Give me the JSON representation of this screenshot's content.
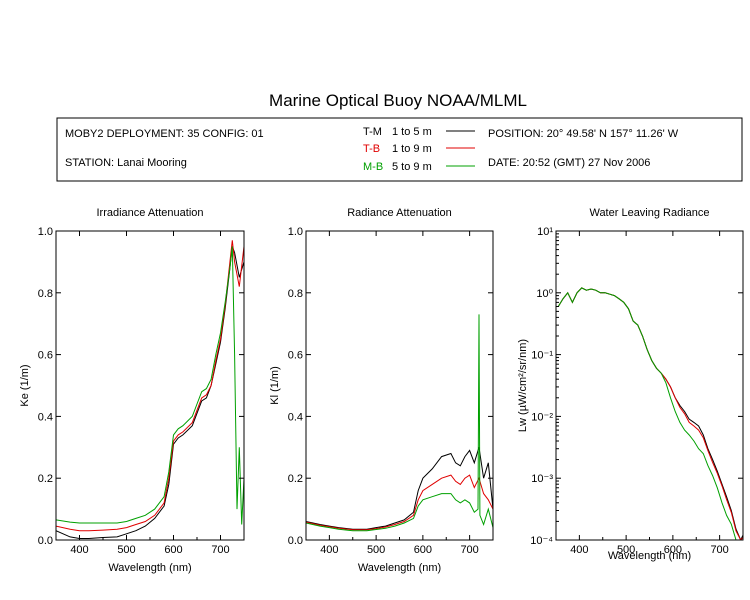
{
  "title": "Marine Optical Buoy NOAA/MLML",
  "info": {
    "deployment": "MOBY2 DEPLOYMENT: 35 CONFIG: 01",
    "station": "STATION: Lanai Mooring",
    "position": "POSITION: 20° 49.58' N   157° 11.26' W",
    "date": "DATE: 20:52 (GMT) 27 Nov 2006",
    "legend": [
      {
        "code": "T-M",
        "range": "1 to 5  m",
        "color": "#000000"
      },
      {
        "code": "T-B",
        "range": "1 to 9  m",
        "color": "#e00000"
      },
      {
        "code": "M-B",
        "range": "5 to 9  m",
        "color": "#00a000"
      }
    ]
  },
  "chart_data": [
    {
      "type": "line",
      "title": "Irradiance Attenuation",
      "xlabel": "Wavelength (nm)",
      "ylabel": "Ke  (1/m)",
      "xlim": [
        350,
        750
      ],
      "ylim": [
        0.0,
        1.0
      ],
      "xticks": [
        "400",
        "500",
        "600",
        "700"
      ],
      "yticks": [
        "0.0",
        "0.2",
        "0.4",
        "0.6",
        "0.8",
        "1.0"
      ],
      "series": [
        {
          "name": "T-M",
          "color": "#000000",
          "x": [
            350,
            380,
            400,
            420,
            450,
            480,
            500,
            520,
            540,
            560,
            580,
            590,
            600,
            610,
            620,
            640,
            650,
            660,
            670,
            680,
            690,
            700,
            710,
            720,
            725,
            730,
            740,
            750
          ],
          "y": [
            0.03,
            0.01,
            0.005,
            0.005,
            0.008,
            0.01,
            0.02,
            0.03,
            0.045,
            0.07,
            0.11,
            0.18,
            0.31,
            0.33,
            0.34,
            0.37,
            0.41,
            0.45,
            0.46,
            0.5,
            0.57,
            0.64,
            0.75,
            0.88,
            0.95,
            0.93,
            0.85,
            0.9
          ]
        },
        {
          "name": "T-B",
          "color": "#e00000",
          "x": [
            350,
            380,
            400,
            420,
            450,
            480,
            500,
            520,
            540,
            560,
            580,
            590,
            600,
            610,
            620,
            640,
            650,
            660,
            670,
            680,
            690,
            700,
            710,
            720,
            725,
            730,
            740,
            750
          ],
          "y": [
            0.045,
            0.035,
            0.03,
            0.03,
            0.032,
            0.035,
            0.04,
            0.05,
            0.06,
            0.08,
            0.12,
            0.2,
            0.32,
            0.34,
            0.35,
            0.38,
            0.42,
            0.46,
            0.47,
            0.5,
            0.58,
            0.65,
            0.76,
            0.9,
            0.97,
            0.9,
            0.82,
            0.95
          ]
        },
        {
          "name": "M-B",
          "color": "#00a000",
          "x": [
            350,
            380,
            400,
            420,
            450,
            480,
            500,
            520,
            540,
            560,
            580,
            590,
            600,
            610,
            620,
            640,
            650,
            660,
            670,
            680,
            690,
            700,
            710,
            720,
            725,
            730,
            735,
            740,
            745,
            750
          ],
          "y": [
            0.065,
            0.058,
            0.055,
            0.055,
            0.055,
            0.055,
            0.06,
            0.07,
            0.08,
            0.1,
            0.14,
            0.22,
            0.34,
            0.36,
            0.37,
            0.4,
            0.44,
            0.48,
            0.49,
            0.52,
            0.6,
            0.67,
            0.77,
            0.88,
            0.95,
            0.6,
            0.1,
            0.3,
            0.05,
            0.2
          ]
        }
      ]
    },
    {
      "type": "line",
      "title": "Radiance Attenuation",
      "xlabel": "Wavelength (nm)",
      "ylabel": "Kl  (1/m)",
      "xlim": [
        350,
        750
      ],
      "ylim": [
        0.0,
        1.0
      ],
      "xticks": [
        "400",
        "500",
        "600",
        "700"
      ],
      "yticks": [
        "0.0",
        "0.2",
        "0.4",
        "0.6",
        "0.8",
        "1.0"
      ],
      "series": [
        {
          "name": "T-M",
          "color": "#000000",
          "x": [
            350,
            380,
            400,
            420,
            450,
            480,
            500,
            520,
            540,
            560,
            580,
            590,
            600,
            620,
            640,
            660,
            670,
            680,
            690,
            700,
            710,
            720,
            730,
            740,
            750
          ],
          "y": [
            0.06,
            0.05,
            0.045,
            0.04,
            0.035,
            0.035,
            0.04,
            0.045,
            0.055,
            0.065,
            0.09,
            0.16,
            0.2,
            0.23,
            0.27,
            0.28,
            0.25,
            0.24,
            0.27,
            0.29,
            0.25,
            0.3,
            0.2,
            0.25,
            0.1
          ]
        },
        {
          "name": "T-B",
          "color": "#e00000",
          "x": [
            350,
            380,
            400,
            420,
            450,
            480,
            500,
            520,
            540,
            560,
            580,
            590,
            600,
            620,
            640,
            660,
            670,
            680,
            690,
            700,
            710,
            720,
            730,
            740,
            750
          ],
          "y": [
            0.058,
            0.048,
            0.043,
            0.038,
            0.033,
            0.033,
            0.037,
            0.042,
            0.05,
            0.06,
            0.08,
            0.13,
            0.16,
            0.18,
            0.2,
            0.21,
            0.19,
            0.18,
            0.2,
            0.21,
            0.17,
            0.2,
            0.15,
            0.13,
            0.1
          ]
        },
        {
          "name": "M-B",
          "color": "#00a000",
          "x": [
            350,
            380,
            400,
            420,
            450,
            480,
            500,
            520,
            540,
            560,
            580,
            590,
            600,
            620,
            640,
            660,
            670,
            680,
            690,
            700,
            710,
            718,
            720,
            722,
            730,
            740,
            750
          ],
          "y": [
            0.055,
            0.045,
            0.04,
            0.035,
            0.03,
            0.03,
            0.034,
            0.038,
            0.045,
            0.055,
            0.07,
            0.11,
            0.13,
            0.14,
            0.15,
            0.15,
            0.13,
            0.12,
            0.13,
            0.12,
            0.09,
            0.1,
            0.73,
            0.08,
            0.05,
            0.1,
            0.04
          ]
        }
      ]
    },
    {
      "type": "line",
      "title": "Water Leaving Radiance",
      "xlabel": "Wavelength (nm)",
      "ylabel": "Lw  (µW/cm²/sr/nm)",
      "xlim": [
        350,
        750
      ],
      "ylim": [
        0.0001,
        10
      ],
      "yscale": "log",
      "xticks": [
        "400",
        "500",
        "600",
        "700"
      ],
      "yticks": [
        "10⁻⁴",
        "10⁻³",
        "10⁻²",
        "10⁻¹",
        "10⁰",
        "10¹"
      ],
      "series": [
        {
          "name": "T-M",
          "color": "#000000",
          "x": [
            355,
            365,
            375,
            385,
            395,
            405,
            415,
            425,
            435,
            445,
            455,
            465,
            475,
            485,
            495,
            505,
            515,
            525,
            535,
            545,
            555,
            565,
            575,
            585,
            595,
            605,
            615,
            625,
            635,
            645,
            655,
            665,
            675,
            685,
            695,
            705,
            715,
            725,
            735,
            745,
            750
          ],
          "y": [
            0.6,
            0.8,
            1.0,
            0.7,
            1.0,
            1.2,
            1.1,
            1.15,
            1.1,
            1.0,
            1.0,
            0.95,
            0.9,
            0.8,
            0.7,
            0.55,
            0.35,
            0.3,
            0.2,
            0.12,
            0.08,
            0.06,
            0.05,
            0.04,
            0.03,
            0.02,
            0.015,
            0.012,
            0.009,
            0.008,
            0.007,
            0.005,
            0.003,
            0.002,
            0.0013,
            0.0008,
            0.0005,
            0.0003,
            0.00015,
            0.0001,
            0.00012
          ]
        },
        {
          "name": "T-B",
          "color": "#e00000",
          "x": [
            355,
            365,
            375,
            385,
            395,
            405,
            415,
            425,
            435,
            445,
            455,
            465,
            475,
            485,
            495,
            505,
            515,
            525,
            535,
            545,
            555,
            565,
            575,
            585,
            595,
            605,
            615,
            625,
            635,
            645,
            655,
            665,
            675,
            685,
            695,
            705,
            715,
            725,
            735,
            745,
            750
          ],
          "y": [
            0.6,
            0.8,
            1.0,
            0.7,
            1.0,
            1.2,
            1.1,
            1.15,
            1.1,
            1.0,
            1.0,
            0.95,
            0.9,
            0.8,
            0.7,
            0.55,
            0.35,
            0.3,
            0.2,
            0.12,
            0.08,
            0.06,
            0.05,
            0.04,
            0.03,
            0.02,
            0.014,
            0.011,
            0.008,
            0.007,
            0.006,
            0.0045,
            0.0028,
            0.0018,
            0.0012,
            0.00075,
            0.00045,
            0.00028,
            0.00014,
            0.0001,
            0.00011
          ]
        },
        {
          "name": "M-B",
          "color": "#00a000",
          "x": [
            355,
            365,
            375,
            385,
            395,
            405,
            415,
            425,
            435,
            445,
            455,
            465,
            475,
            485,
            495,
            505,
            515,
            525,
            535,
            545,
            555,
            565,
            575,
            585,
            595,
            605,
            615,
            625,
            635,
            645,
            655,
            665,
            675,
            685,
            695,
            705,
            715,
            725,
            735,
            745,
            750
          ],
          "y": [
            0.6,
            0.8,
            1.0,
            0.7,
            1.0,
            1.2,
            1.1,
            1.15,
            1.1,
            1.0,
            1.0,
            0.95,
            0.9,
            0.8,
            0.7,
            0.55,
            0.35,
            0.3,
            0.2,
            0.12,
            0.08,
            0.06,
            0.05,
            0.035,
            0.02,
            0.012,
            0.008,
            0.006,
            0.005,
            0.004,
            0.003,
            0.0025,
            0.0016,
            0.0011,
            0.0007,
            0.0004,
            0.00025,
            0.00018,
            0.0001,
            0.0001,
            0.0001
          ]
        }
      ]
    }
  ]
}
